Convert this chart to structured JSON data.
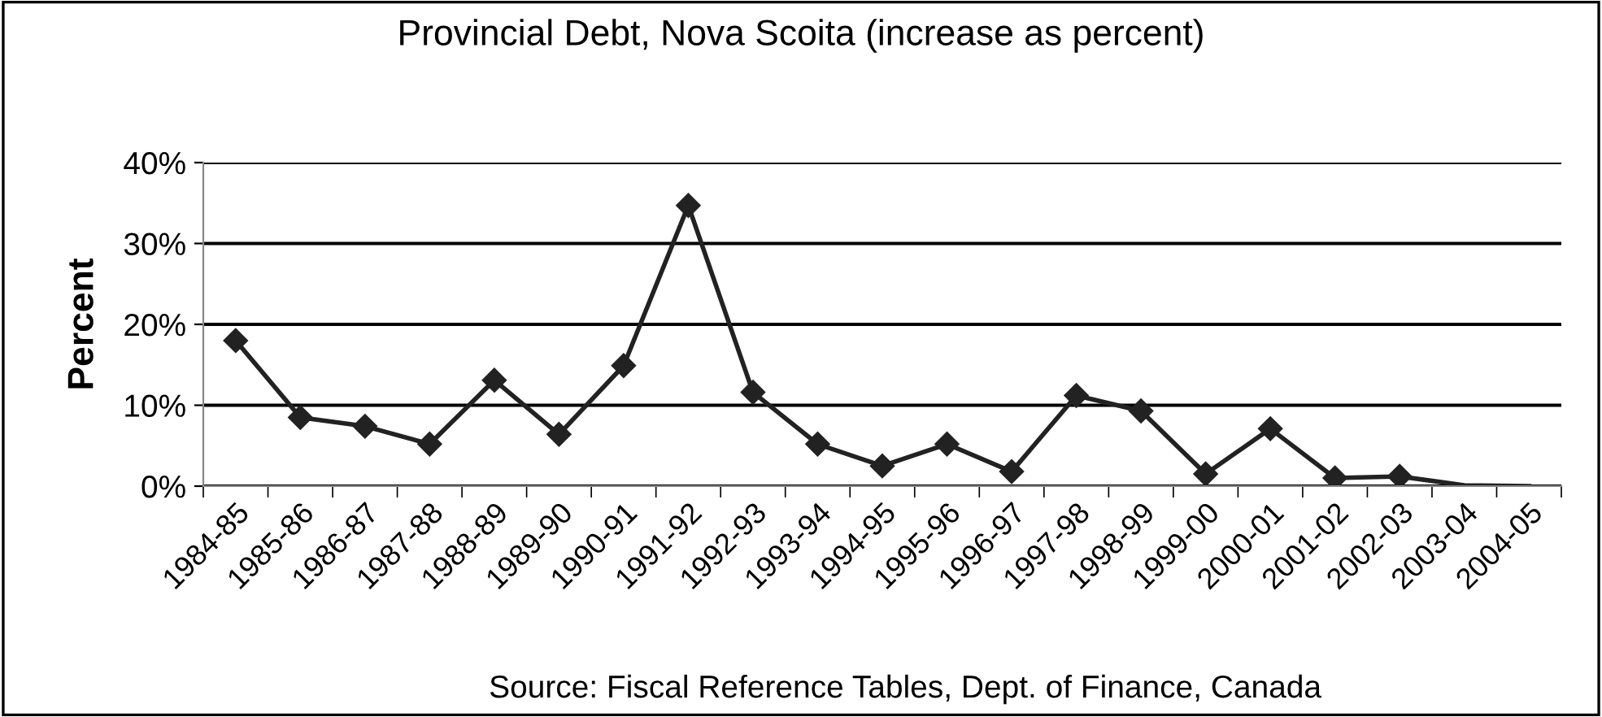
{
  "chart_data": {
    "type": "line",
    "title": "Provincial Debt, Nova Scoita (increase as percent)",
    "ylabel": "Percent",
    "categories": [
      "1984-85",
      "1985-86",
      "1986-87",
      "1987-88",
      "1988-89",
      "1989-90",
      "1990-91",
      "1991-92",
      "1992-93",
      "1993-94",
      "1994-95",
      "1995-96",
      "1996-97",
      "1997-98",
      "1998-99",
      "1999-00",
      "2000-01",
      "2001-02",
      "2002-03",
      "2003-04",
      "2004-05"
    ],
    "series": [
      {
        "color": "#222222",
        "marker": "diamond",
        "values": [
          18,
          8.5,
          7.4,
          5.2,
          13.1,
          6.4,
          14.9,
          34.7,
          11.6,
          5.2,
          2.5,
          5.2,
          1.8,
          11.2,
          9.3,
          1.5,
          7.1,
          1.0,
          1.2,
          null,
          null
        ]
      },
      {
        "color": "#222222",
        "marker": "none",
        "values": [
          null,
          null,
          null,
          null,
          null,
          null,
          null,
          null,
          null,
          null,
          null,
          null,
          null,
          null,
          null,
          null,
          null,
          null,
          1.2,
          0.1,
          0
        ]
      }
    ],
    "ylim": [
      0,
      40
    ],
    "yticks": [
      {
        "value": 0,
        "label": "0%"
      },
      {
        "value": 10,
        "label": "10%"
      },
      {
        "value": 20,
        "label": "20%"
      },
      {
        "value": 30,
        "label": "30%"
      },
      {
        "value": 40,
        "label": "40%"
      }
    ],
    "grid": "y",
    "legend": false,
    "annotations": [
      "Source: Fiscal Reference Tables, Dept. of Finance, Canada"
    ]
  }
}
